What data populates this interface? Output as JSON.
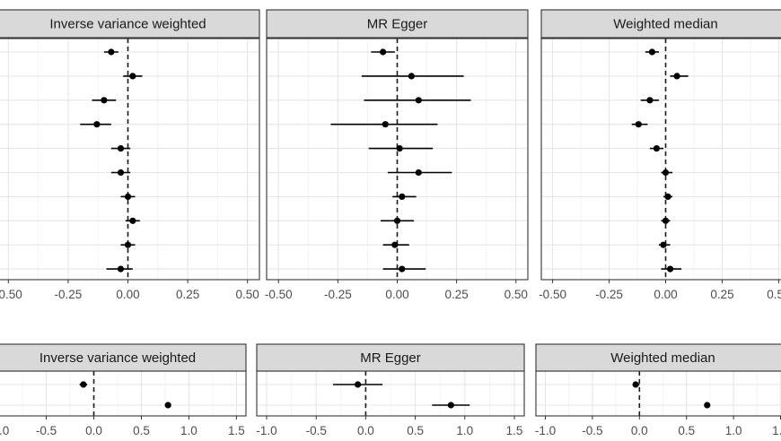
{
  "chart_data": [
    {
      "type": "forest",
      "xlim": [
        -0.55,
        0.55
      ],
      "x_ticks": [
        "-0.50",
        "-0.25",
        "0.00",
        "0.25",
        "0.50"
      ],
      "reference_line": 0,
      "grid": true,
      "panels": [
        {
          "strip": "Inverse variance weighted",
          "points": [
            {
              "est": -0.07,
              "lo": -0.1,
              "hi": -0.04
            },
            {
              "est": 0.02,
              "lo": -0.02,
              "hi": 0.06
            },
            {
              "est": -0.1,
              "lo": -0.15,
              "hi": -0.05
            },
            {
              "est": -0.13,
              "lo": -0.2,
              "hi": -0.07
            },
            {
              "est": -0.03,
              "lo": -0.07,
              "hi": 0.01
            },
            {
              "est": -0.03,
              "lo": -0.07,
              "hi": 0.01
            },
            {
              "est": 0.0,
              "lo": -0.03,
              "hi": 0.03
            },
            {
              "est": 0.02,
              "lo": -0.01,
              "hi": 0.05
            },
            {
              "est": 0.0,
              "lo": -0.03,
              "hi": 0.03
            },
            {
              "est": -0.03,
              "lo": -0.09,
              "hi": 0.02
            }
          ]
        },
        {
          "strip": "MR Egger",
          "points": [
            {
              "est": -0.06,
              "lo": -0.11,
              "hi": -0.01
            },
            {
              "est": 0.06,
              "lo": -0.15,
              "hi": 0.28
            },
            {
              "est": 0.09,
              "lo": -0.14,
              "hi": 0.31
            },
            {
              "est": -0.05,
              "lo": -0.28,
              "hi": 0.17
            },
            {
              "est": 0.01,
              "lo": -0.12,
              "hi": 0.15
            },
            {
              "est": 0.09,
              "lo": -0.04,
              "hi": 0.23
            },
            {
              "est": 0.02,
              "lo": -0.02,
              "hi": 0.08
            },
            {
              "est": 0.0,
              "lo": -0.07,
              "hi": 0.07
            },
            {
              "est": -0.01,
              "lo": -0.06,
              "hi": 0.05
            },
            {
              "est": 0.02,
              "lo": -0.06,
              "hi": 0.12
            }
          ]
        },
        {
          "strip": "Weighted median",
          "points": [
            {
              "est": -0.06,
              "lo": -0.09,
              "hi": -0.03
            },
            {
              "est": 0.05,
              "lo": 0.02,
              "hi": 0.1
            },
            {
              "est": -0.07,
              "lo": -0.11,
              "hi": -0.03
            },
            {
              "est": -0.12,
              "lo": -0.15,
              "hi": -0.08
            },
            {
              "est": -0.04,
              "lo": -0.07,
              "hi": -0.01
            },
            {
              "est": 0.0,
              "lo": -0.02,
              "hi": 0.03
            },
            {
              "est": 0.01,
              "lo": -0.01,
              "hi": 0.03
            },
            {
              "est": 0.0,
              "lo": -0.02,
              "hi": 0.02
            },
            {
              "est": -0.01,
              "lo": -0.03,
              "hi": 0.02
            },
            {
              "est": 0.02,
              "lo": -0.02,
              "hi": 0.07
            }
          ]
        }
      ]
    },
    {
      "type": "forest",
      "xlim": [
        -1.1,
        1.6
      ],
      "x_ticks": [
        "-1.0",
        "-0.5",
        "0.0",
        "0.5",
        "1.0",
        "1.5"
      ],
      "reference_line": 0,
      "grid": true,
      "panels": [
        {
          "strip": "Inverse variance weighted",
          "points": [
            {
              "est": -0.11,
              "lo": -0.15,
              "hi": -0.07
            },
            {
              "est": 0.78,
              "lo": 0.75,
              "hi": 0.81
            }
          ]
        },
        {
          "strip": "MR Egger",
          "points": [
            {
              "est": -0.08,
              "lo": -0.33,
              "hi": 0.17
            },
            {
              "est": 0.86,
              "lo": 0.67,
              "hi": 1.05
            }
          ]
        },
        {
          "strip": "Weighted median",
          "points": [
            {
              "est": -0.04,
              "lo": -0.07,
              "hi": 0.0
            },
            {
              "est": 0.72,
              "lo": 0.69,
              "hi": 0.75
            }
          ]
        }
      ]
    }
  ]
}
